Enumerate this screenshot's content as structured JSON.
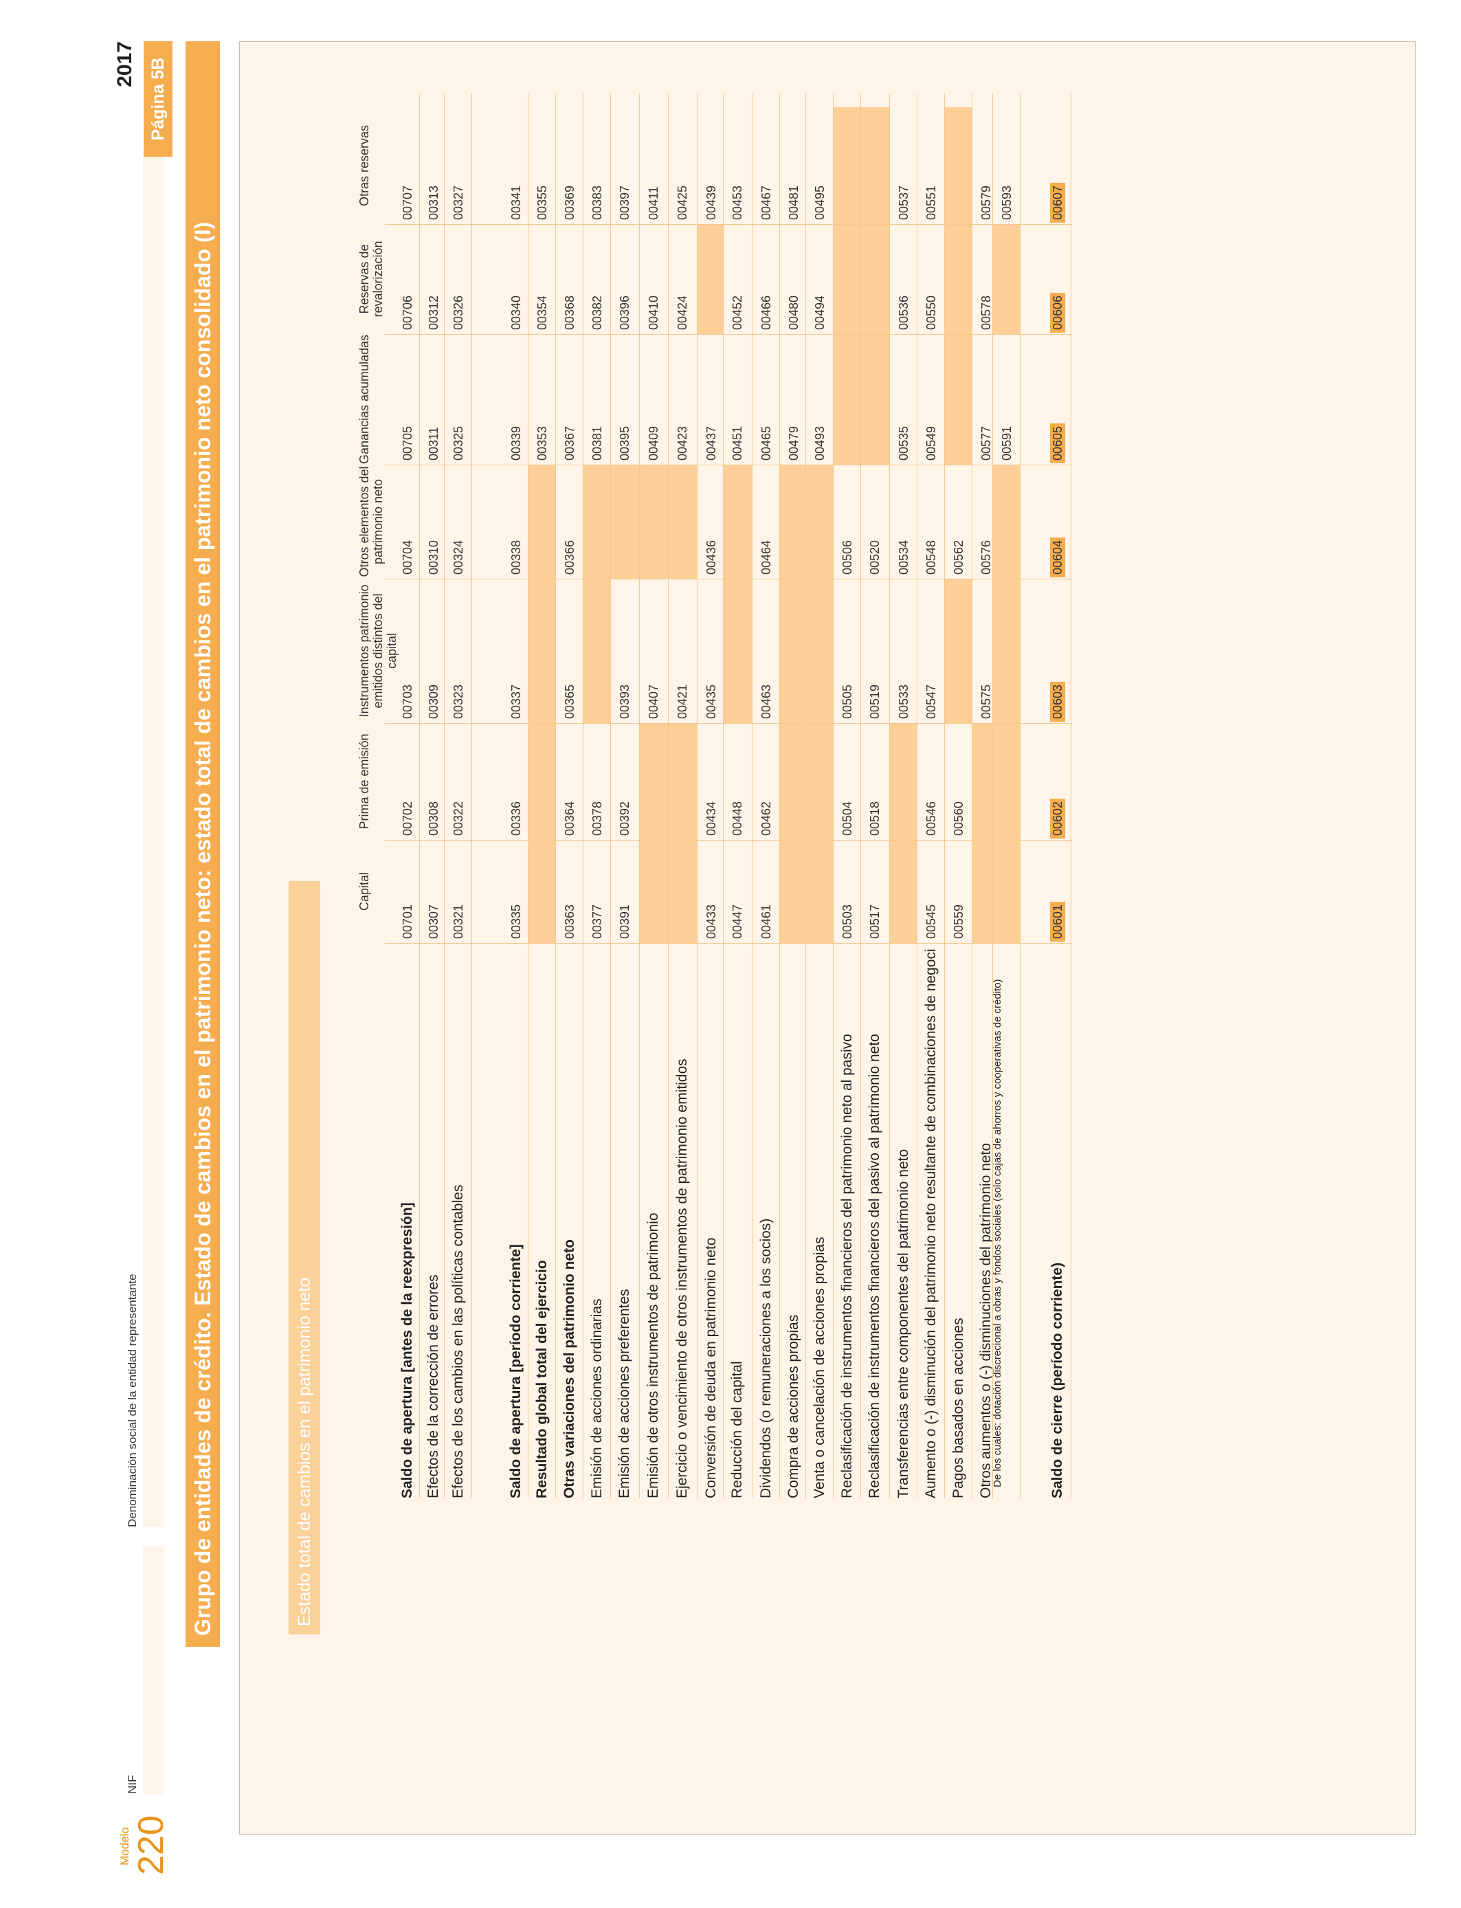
{
  "header": {
    "modelo_label": "Modelo",
    "modelo_number": "220",
    "nif_label": "NIF",
    "denominacion_label": "Denominación social de la entidad representante",
    "year": "2017",
    "page": "Página 5B",
    "title": "Grupo de entidades de crédito. Estado de cambios en el patrimonio neto: estado total de cambios en el patrimonio neto consolidado (I)",
    "section": "Estado total de cambios en el patrimonio neto"
  },
  "columns": [
    "Capital",
    "Prima de emisión",
    "Instrumentos patrimonio emitidos distintos del capital",
    "Otros elementos del patrimonio neto",
    "Ganancias acumuladas",
    "Reservas de revalorización",
    "Otras reservas"
  ],
  "rows": [
    {
      "label": "Saldo de apertura [antes de la reexpresión]",
      "bold": true,
      "codes": [
        "00701",
        "00702",
        "00703",
        "00704",
        "00705",
        "00706",
        "00707"
      ]
    },
    {
      "label": "Efectos de la corrección de errores",
      "bold": false,
      "codes": [
        "00307",
        "00308",
        "00309",
        "00310",
        "00311",
        "00312",
        "00313"
      ]
    },
    {
      "label": "Efectos de los cambios en las políticas contables",
      "bold": false,
      "codes": [
        "00321",
        "00322",
        "00323",
        "00324",
        "00325",
        "00326",
        "00327"
      ]
    },
    {
      "label": "Saldo de apertura [período corriente]",
      "bold": true,
      "codes": [
        "00335",
        "00336",
        "00337",
        "00338",
        "00339",
        "00340",
        "00341"
      ]
    },
    {
      "label": "Resultado global total del ejercicio",
      "bold": true,
      "codes": [
        "",
        "",
        "",
        "",
        "00353",
        "00354",
        "00355"
      ]
    },
    {
      "label": "Otras variaciones del patrimonio neto",
      "bold": true,
      "codes": [
        "00363",
        "00364",
        "00365",
        "00366",
        "00367",
        "00368",
        "00369"
      ]
    },
    {
      "label": "Emisión de acciones ordinarias",
      "bold": false,
      "codes": [
        "00377",
        "00378",
        "",
        "",
        "00381",
        "00382",
        "00383"
      ]
    },
    {
      "label": "Emisión de acciones preferentes",
      "bold": false,
      "codes": [
        "00391",
        "00392",
        "00393",
        "",
        "00395",
        "00396",
        "00397"
      ]
    },
    {
      "label": "Emisión de otros instrumentos de patrimonio",
      "bold": false,
      "codes": [
        "",
        "",
        "00407",
        "",
        "00409",
        "00410",
        "00411"
      ]
    },
    {
      "label": "Ejercicio o vencimiento de otros instrumentos de patrimonio emitidos",
      "bold": false,
      "codes": [
        "",
        "",
        "00421",
        "",
        "00423",
        "00424",
        "00425"
      ]
    },
    {
      "label": "Conversión de deuda en patrimonio neto",
      "bold": false,
      "codes": [
        "00433",
        "00434",
        "00435",
        "00436",
        "00437",
        "",
        "00439"
      ]
    },
    {
      "label": "Reducción del capital",
      "bold": false,
      "codes": [
        "00447",
        "00448",
        "",
        "",
        "00451",
        "00452",
        "00453"
      ]
    },
    {
      "label": "Dividendos (o remuneraciones a los socios)",
      "bold": false,
      "codes": [
        "00461",
        "00462",
        "00463",
        "00464",
        "00465",
        "00466",
        "00467"
      ]
    },
    {
      "label": "Compra de acciones propias",
      "bold": false,
      "codes": [
        "",
        "",
        "",
        "",
        "00479",
        "00480",
        "00481"
      ]
    },
    {
      "label": "Venta o cancelación de acciones propias",
      "bold": false,
      "codes": [
        "",
        "",
        "",
        "",
        "00493",
        "00494",
        "00495"
      ]
    },
    {
      "label": "Reclasificación de instrumentos financieros del patrimonio neto al pasivo",
      "bold": false,
      "codes": [
        "00503",
        "00504",
        "00505",
        "00506",
        "",
        "",
        ""
      ]
    },
    {
      "label": "Reclasificación de instrumentos financieros del pasivo al patrimonio neto",
      "bold": false,
      "codes": [
        "00517",
        "00518",
        "00519",
        "00520",
        "",
        "",
        ""
      ]
    },
    {
      "label": "Transferencias entre componentes del patrimonio neto",
      "bold": false,
      "codes": [
        "",
        "",
        "00533",
        "00534",
        "00535",
        "00536",
        "00537"
      ]
    },
    {
      "label": "Aumento o (-) disminución del patrimonio neto resultante de combinaciones de negocios",
      "bold": false,
      "codes": [
        "00545",
        "00546",
        "00547",
        "00548",
        "00549",
        "00550",
        "00551"
      ]
    },
    {
      "label": "Pagos basados en acciones",
      "bold": false,
      "codes": [
        "00559",
        "00560",
        "",
        "00562",
        "",
        "",
        ""
      ]
    },
    {
      "label": "Otros aumentos o (-) disminuciones del patrimonio neto",
      "bold": false,
      "codes": [
        "",
        "",
        "00575",
        "00576",
        "00577",
        "00578",
        "00579"
      ]
    },
    {
      "label": "De los cuales: dotación discrecional a obras y fondos sociales (solo cajas de ahorros y cooperativas de crédito)",
      "bold": false,
      "codes": [
        "",
        "",
        "",
        "",
        "00591",
        "",
        "00593"
      ]
    },
    {
      "label": "Saldo de cierre (período corriente)",
      "bold": true,
      "codes": [
        "00601",
        "00602",
        "00603",
        "00604",
        "00605",
        "00606",
        "00607"
      ]
    }
  ],
  "colors": {
    "accent": "#f6ad4f",
    "shade": "#fbcf96",
    "background": "#fff4e8"
  }
}
